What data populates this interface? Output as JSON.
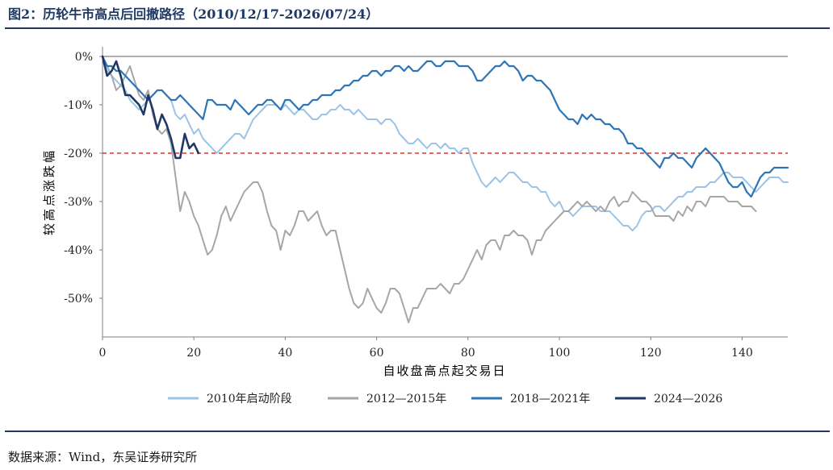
{
  "title": "图2：历轮牛市高点后回撤路径（2010/12/17-2026/07/24）",
  "source": "数据来源：Wind，东吴证券研究所",
  "colors": {
    "header": "#1f3864",
    "reference_line": "#e0302b"
  },
  "chart_data": {
    "type": "line",
    "title": "图2：历轮牛市高点后回撤路径（2010/12/17-2026/07/24）",
    "xlabel": "自收盘高点起交易日",
    "ylabel": "较高点涨跌幅",
    "xlim": [
      0,
      150
    ],
    "ylim": [
      -58,
      2
    ],
    "xticks": [
      0,
      20,
      40,
      60,
      80,
      100,
      120,
      140
    ],
    "xtick_labels": [
      "0",
      "20",
      "40",
      "60",
      "80",
      "100",
      "120",
      "140"
    ],
    "yticks": [
      0,
      -10,
      -20,
      -30,
      -40,
      -50
    ],
    "ytick_labels": [
      "0%",
      "-10%",
      "-20%",
      "-30%",
      "-40%",
      "-50%"
    ],
    "reference_line": {
      "y": -20,
      "style": "dashed",
      "color": "#e0302b"
    },
    "grid": false,
    "legend_position": "bottom",
    "series": [
      {
        "name": "2010年启动阶段",
        "color": "#9dc3e6",
        "width": 2,
        "x": [
          0,
          1,
          2,
          3,
          4,
          5,
          6,
          7,
          8,
          9,
          10,
          11,
          12,
          13,
          14,
          15,
          16,
          17,
          18,
          19,
          20,
          21,
          22,
          23,
          24,
          25,
          26,
          27,
          28,
          29,
          30,
          31,
          32,
          33,
          34,
          35,
          36,
          37,
          38,
          39,
          40,
          41,
          42,
          43,
          44,
          45,
          46,
          47,
          48,
          49,
          50,
          51,
          52,
          53,
          54,
          55,
          56,
          57,
          58,
          59,
          60,
          61,
          62,
          63,
          64,
          65,
          66,
          67,
          68,
          69,
          70,
          71,
          72,
          73,
          74,
          75,
          76,
          77,
          78,
          79,
          80,
          81,
          82,
          83,
          84,
          85,
          86,
          87,
          88,
          89,
          90,
          91,
          92,
          93,
          94,
          95,
          96,
          97,
          98,
          99,
          100,
          101,
          102,
          103,
          104,
          105,
          106,
          107,
          108,
          109,
          110,
          111,
          112,
          113,
          114,
          115,
          116,
          117,
          118,
          119,
          120,
          121,
          122,
          123,
          124,
          125,
          126,
          127,
          128,
          129,
          130,
          131,
          132,
          133,
          134,
          135,
          136,
          137,
          138,
          139,
          140,
          141,
          142,
          143,
          144,
          145,
          146,
          147,
          148,
          149,
          150
        ],
        "y": [
          0,
          -3,
          -4,
          -5,
          -6,
          -7,
          -9,
          -10,
          -11,
          -10,
          -9,
          -8,
          -7,
          -7,
          -8,
          -9,
          -12,
          -13,
          -12,
          -14,
          -16,
          -15,
          -17,
          -18,
          -19,
          -20,
          -19,
          -18,
          -17,
          -16,
          -16,
          -17,
          -15,
          -13,
          -12,
          -11,
          -10,
          -10,
          -10,
          -11,
          -10,
          -11,
          -12,
          -11,
          -11,
          -12,
          -13,
          -13,
          -12,
          -12,
          -11,
          -11,
          -10,
          -11,
          -11,
          -12,
          -11,
          -12,
          -13,
          -13,
          -13,
          -14,
          -13,
          -13,
          -14,
          -16,
          -17,
          -18,
          -18,
          -17,
          -18,
          -19,
          -18,
          -18,
          -19,
          -18,
          -19,
          -19,
          -20,
          -19,
          -19,
          -22,
          -24,
          -26,
          -27,
          -26,
          -25,
          -26,
          -25,
          -24,
          -24,
          -25,
          -26,
          -26,
          -27,
          -27,
          -28,
          -28,
          -30,
          -31,
          -30,
          -32,
          -32,
          -33,
          -32,
          -31,
          -31,
          -31,
          -31,
          -32,
          -32,
          -32,
          -33,
          -34,
          -35,
          -35,
          -36,
          -35,
          -33,
          -32,
          -32,
          -31,
          -31,
          -32,
          -31,
          -30,
          -29,
          -29,
          -28,
          -28,
          -27,
          -27,
          -27,
          -26,
          -26,
          -25,
          -24,
          -24,
          -25,
          -25,
          -25,
          -26,
          -27,
          -28,
          -27,
          -26,
          -25,
          -25,
          -25,
          -26,
          -26
        ],
        "y_note": "",
        "length": 151
      },
      {
        "name": "2012—2015年",
        "color": "#a6a6a6",
        "width": 2,
        "x": [
          0,
          1,
          2,
          3,
          4,
          5,
          6,
          7,
          8,
          9,
          10,
          11,
          12,
          13,
          14,
          15,
          16,
          17,
          18,
          19,
          20,
          21,
          22,
          23,
          24,
          25,
          26,
          27,
          28,
          29,
          30,
          31,
          32,
          33,
          34,
          35,
          36,
          37,
          38,
          39,
          40,
          41,
          42,
          43,
          44,
          45,
          46,
          47,
          48,
          49,
          50,
          51,
          52,
          53,
          54,
          55,
          56,
          57,
          58,
          59,
          60,
          61,
          62,
          63,
          64,
          65,
          66,
          67,
          68,
          69,
          70,
          71,
          72,
          73,
          74,
          75,
          76,
          77,
          78,
          79,
          80,
          81,
          82,
          83,
          84,
          85,
          86,
          87,
          88,
          89,
          90,
          91,
          92,
          93,
          94,
          95,
          96,
          97,
          98,
          99,
          100,
          101,
          102,
          103,
          104,
          105,
          106,
          107,
          108,
          109,
          110,
          111,
          112,
          113,
          114,
          115,
          116,
          117,
          118,
          119,
          120,
          121,
          122,
          123,
          124,
          125,
          126,
          127,
          128,
          129,
          130,
          131,
          132,
          133,
          134,
          135,
          136,
          137,
          138,
          139,
          140,
          141,
          142,
          143
        ],
        "y": [
          0,
          -2,
          -4,
          -7,
          -6,
          -4,
          -2,
          -5,
          -8,
          -9,
          -7,
          -12,
          -15,
          -16,
          -15,
          -18,
          -25,
          -32,
          -28,
          -30,
          -33,
          -35,
          -38,
          -41,
          -40,
          -37,
          -33,
          -31,
          -34,
          -32,
          -30,
          -28,
          -27,
          -26,
          -26,
          -28,
          -32,
          -35,
          -36,
          -40,
          -36,
          -37,
          -35,
          -32,
          -32,
          -34,
          -33,
          -32,
          -35,
          -37,
          -36,
          -36,
          -40,
          -44,
          -48,
          -51,
          -52,
          -51,
          -48,
          -50,
          -52,
          -53,
          -51,
          -48,
          -48,
          -49,
          -52,
          -55,
          -52,
          -52,
          -50,
          -48,
          -48,
          -48,
          -47,
          -48,
          -49,
          -47,
          -47,
          -46,
          -44,
          -42,
          -40,
          -42,
          -39,
          -38,
          -38,
          -40,
          -37,
          -37,
          -36,
          -37,
          -37,
          -38,
          -41,
          -38,
          -38,
          -36,
          -35,
          -34,
          -33,
          -32,
          -32,
          -31,
          -30,
          -31,
          -30,
          -31,
          -32,
          -31,
          -32,
          -30,
          -29,
          -31,
          -30,
          -30,
          -28,
          -29,
          -30,
          -30,
          -31,
          -33,
          -33,
          -33,
          -33,
          -34,
          -32,
          -33,
          -31,
          -32,
          -30,
          -30,
          -31,
          -29,
          -29,
          -29,
          -29,
          -30,
          -30,
          -30,
          -31,
          -31,
          -31,
          -32
        ],
        "y_note": "",
        "length": 144
      },
      {
        "name": "2018—2021年",
        "color": "#2e75b6",
        "width": 2.2,
        "x": [
          0,
          1,
          2,
          3,
          4,
          5,
          6,
          7,
          8,
          9,
          10,
          11,
          12,
          13,
          14,
          15,
          16,
          17,
          18,
          19,
          20,
          21,
          22,
          23,
          24,
          25,
          26,
          27,
          28,
          29,
          30,
          31,
          32,
          33,
          34,
          35,
          36,
          37,
          38,
          39,
          40,
          41,
          42,
          43,
          44,
          45,
          46,
          47,
          48,
          49,
          50,
          51,
          52,
          53,
          54,
          55,
          56,
          57,
          58,
          59,
          60,
          61,
          62,
          63,
          64,
          65,
          66,
          67,
          68,
          69,
          70,
          71,
          72,
          73,
          74,
          75,
          76,
          77,
          78,
          79,
          80,
          81,
          82,
          83,
          84,
          85,
          86,
          87,
          88,
          89,
          90,
          91,
          92,
          93,
          94,
          95,
          96,
          97,
          98,
          99,
          100,
          101,
          102,
          103,
          104,
          105,
          106,
          107,
          108,
          109,
          110,
          111,
          112,
          113,
          114,
          115,
          116,
          117,
          118,
          119,
          120,
          121,
          122,
          123,
          124,
          125,
          126,
          127,
          128,
          129,
          130,
          131,
          132,
          133,
          134,
          135,
          136,
          137,
          138,
          139,
          140,
          141,
          142,
          143,
          144,
          145,
          146,
          147,
          148,
          149,
          150
        ],
        "y": [
          0,
          -2,
          -2,
          -3,
          -3,
          -4,
          -5,
          -6,
          -7,
          -8,
          -9,
          -8,
          -7,
          -7,
          -8,
          -9,
          -9,
          -8,
          -9,
          -10,
          -11,
          -12,
          -13,
          -9,
          -9,
          -10,
          -10,
          -10,
          -11,
          -9,
          -10,
          -11,
          -12,
          -11,
          -10,
          -10,
          -9,
          -9,
          -10,
          -11,
          -9,
          -9,
          -10,
          -11,
          -10,
          -10,
          -9,
          -9,
          -8,
          -8,
          -8,
          -7,
          -7,
          -6,
          -6,
          -5,
          -5,
          -4,
          -4,
          -3,
          -3,
          -4,
          -3,
          -3,
          -2,
          -2,
          -3,
          -2,
          -3,
          -3,
          -2,
          -1,
          -1,
          -2,
          -2,
          -1,
          -1,
          -1,
          -2,
          -2,
          -2,
          -3,
          -5,
          -5,
          -4,
          -3,
          -2,
          -2,
          -1,
          -2,
          -2,
          -3,
          -5,
          -4,
          -4,
          -5,
          -5,
          -6,
          -7,
          -9,
          -11,
          -12,
          -13,
          -13,
          -14,
          -12,
          -13,
          -12,
          -13,
          -13,
          -14,
          -14,
          -15,
          -15,
          -16,
          -18,
          -18,
          -19,
          -19,
          -20,
          -21,
          -22,
          -23,
          -21,
          -21,
          -20,
          -21,
          -21,
          -22,
          -23,
          -21,
          -20,
          -19,
          -20,
          -21,
          -22,
          -24,
          -26,
          -27,
          -27,
          -26,
          -28,
          -29,
          -27,
          -25,
          -24,
          -24,
          -23,
          -23,
          -23,
          -23
        ],
        "y_note": "",
        "length": 151
      },
      {
        "name": "2024—2026",
        "color": "#1f3864",
        "width": 2.6,
        "x": [
          0,
          1,
          2,
          3,
          4,
          5,
          6,
          7,
          8,
          9,
          10,
          11,
          12,
          13,
          14,
          15,
          16,
          17,
          18,
          19,
          20,
          21
        ],
        "y": [
          0,
          -4,
          -3,
          -1,
          -4,
          -8,
          -8,
          -9,
          -10,
          -12,
          -8,
          -11,
          -15,
          -12,
          -14,
          -17,
          -21,
          -21,
          -16,
          -19,
          -18,
          -20
        ],
        "y_note": "",
        "length": 22
      }
    ]
  }
}
